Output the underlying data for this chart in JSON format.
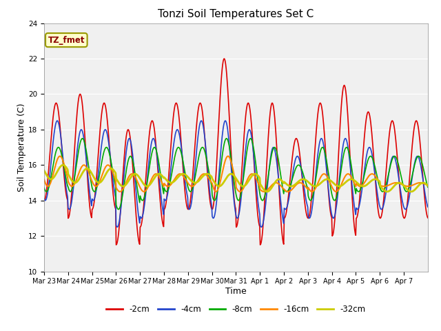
{
  "title": "Tonzi Soil Temperatures Set C",
  "xlabel": "Time",
  "ylabel": "Soil Temperature (C)",
  "ylim": [
    10,
    24
  ],
  "yticks": [
    10,
    12,
    14,
    16,
    18,
    20,
    22,
    24
  ],
  "annotation_text": "TZ_fmet",
  "annotation_color": "#8b0000",
  "annotation_bg": "#ffffcc",
  "annotation_border": "#999900",
  "bg_color": "#e8e8e8",
  "plot_bg": "#f0f0f0",
  "line_colors": {
    "-2cm": "#dd0000",
    "-4cm": "#2244cc",
    "-8cm": "#00aa00",
    "-16cm": "#ff8800",
    "-32cm": "#cccc00"
  },
  "line_widths": {
    "-2cm": 1.2,
    "-4cm": 1.2,
    "-8cm": 1.2,
    "-16cm": 1.5,
    "-32cm": 2.0
  },
  "x_ticklabels": [
    "Mar 23",
    "Mar 24",
    "Mar 25",
    "Mar 26",
    "Mar 27",
    "Mar 28",
    "Mar 29",
    "Mar 30",
    "Mar 31",
    "Apr 1",
    "Apr 2",
    "Apr 3",
    "Apr 4",
    "Apr 5",
    "Apr 6",
    "Apr 7"
  ],
  "n_days": 16,
  "pts_per_day": 48
}
